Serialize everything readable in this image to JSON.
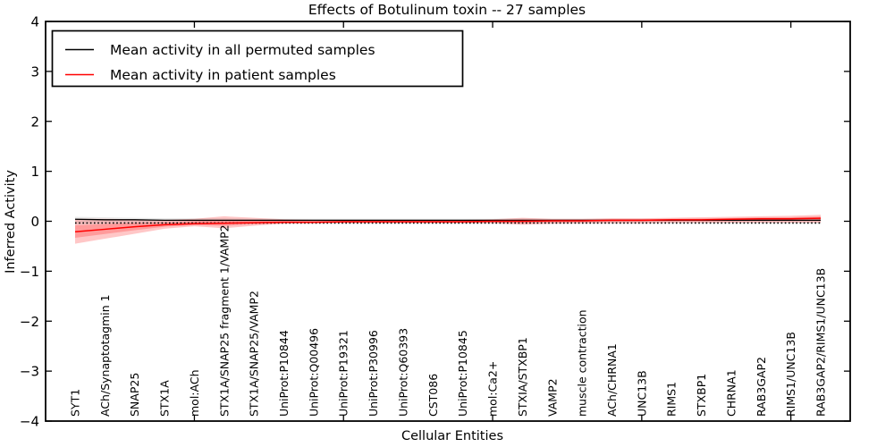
{
  "chart_data": {
    "type": "line",
    "title": "Effects of Botulinum toxin -- 27 samples",
    "xlabel": "Cellular Entities",
    "ylabel": "Inferred Activity",
    "ylim": [
      -4,
      4
    ],
    "xlim_categories": 26,
    "grid": false,
    "legend_position": "upper left",
    "yticks": [
      4,
      3,
      2,
      1,
      0,
      -1,
      -2,
      -3,
      -4
    ],
    "ytick_labels": [
      "4",
      "3",
      "2",
      "1",
      "0",
      "−1",
      "−2",
      "−3",
      "−4"
    ],
    "xtick_mark_indices": [
      4,
      9,
      14,
      19,
      24
    ],
    "categories": [
      "SYT1",
      "ACh/Synaptotagmin 1",
      "SNAP25",
      "STX1A",
      "mol:ACh",
      "STX1A/SNAP25 fragment 1/VAMP2",
      "STX1A/SNAP25/VAMP2",
      "UniProt:P10844",
      "UniProt:Q00496",
      "UniProt:P19321",
      "UniProt:P30996",
      "UniProt:Q60393",
      "CST086",
      "UniProt:P10845",
      "mol:Ca2+",
      "STXIA/STXBP1",
      "VAMP2",
      "muscle contraction",
      "ACh/CHRNA1",
      "UNC13B",
      "RIMS1",
      "STXBP1",
      "CHRNA1",
      "RAB3GAP2",
      "RIMS1/UNC13B",
      "RAB3GAP2/RIMS1/UNC13B"
    ],
    "series": [
      {
        "name": "Mean activity in all permuted samples",
        "color": "#000000",
        "band_color": "#888888",
        "values": [
          0.04,
          0.03,
          0.03,
          0.02,
          0.02,
          0.02,
          0.02,
          0.02,
          0.02,
          0.02,
          0.02,
          0.02,
          0.02,
          0.02,
          0.02,
          0.02,
          0.02,
          0.02,
          0.02,
          0.02,
          0.02,
          0.02,
          0.02,
          0.02,
          0.02,
          0.02
        ],
        "band_upper": [
          0.09,
          0.08,
          0.07,
          0.06,
          0.06,
          0.06,
          0.05,
          0.05,
          0.05,
          0.05,
          0.05,
          0.05,
          0.05,
          0.05,
          0.05,
          0.06,
          0.05,
          0.05,
          0.05,
          0.05,
          0.05,
          0.05,
          0.05,
          0.06,
          0.06,
          0.07
        ],
        "band_lower": [
          -0.06,
          -0.05,
          -0.05,
          -0.04,
          -0.04,
          -0.04,
          -0.04,
          -0.04,
          -0.04,
          -0.04,
          -0.04,
          -0.04,
          -0.04,
          -0.04,
          -0.04,
          -0.04,
          -0.04,
          -0.04,
          -0.04,
          -0.04,
          -0.04,
          -0.04,
          -0.04,
          -0.04,
          -0.04,
          -0.05
        ]
      },
      {
        "name": "Mean activity in patient samples",
        "color": "#ff0000",
        "band_color": "#ff0000",
        "values": [
          -0.21,
          -0.16,
          -0.11,
          -0.07,
          -0.05,
          -0.04,
          -0.03,
          -0.02,
          -0.02,
          -0.01,
          -0.01,
          -0.01,
          -0.01,
          -0.01,
          0.0,
          0.0,
          0.01,
          0.01,
          0.02,
          0.02,
          0.03,
          0.03,
          0.04,
          0.05,
          0.05,
          0.06
        ],
        "band_upper": [
          0.05,
          0.05,
          0.04,
          0.03,
          0.05,
          0.1,
          0.07,
          0.04,
          0.03,
          0.03,
          0.03,
          0.03,
          0.03,
          0.03,
          0.04,
          0.07,
          0.05,
          0.05,
          0.06,
          0.06,
          0.07,
          0.08,
          0.09,
          0.1,
          0.11,
          0.13
        ],
        "band_lower": [
          -0.45,
          -0.35,
          -0.25,
          -0.15,
          -0.1,
          -0.14,
          -0.09,
          -0.05,
          -0.04,
          -0.04,
          -0.04,
          -0.04,
          -0.04,
          -0.04,
          -0.04,
          -0.07,
          -0.05,
          -0.04,
          -0.04,
          -0.04,
          -0.03,
          -0.03,
          -0.03,
          -0.03,
          -0.03,
          -0.03
        ]
      }
    ],
    "zero_reference_line": {
      "value": -0.035,
      "style": "dotted",
      "color": "#000000"
    }
  }
}
